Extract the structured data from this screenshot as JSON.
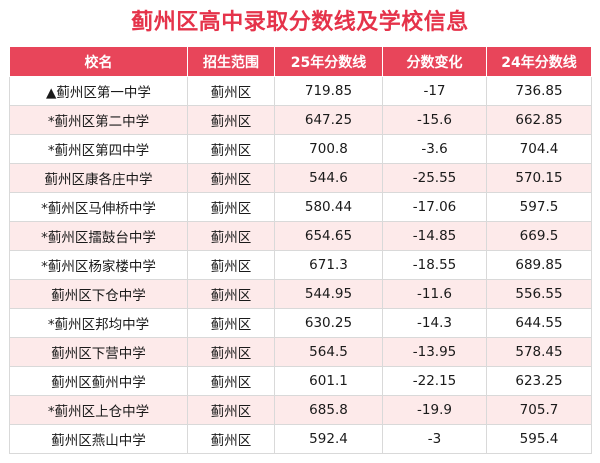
{
  "title": "蓟州区高中录取分数线及学校信息",
  "table": {
    "headers": [
      "校名",
      "招生范围",
      "25年分数线",
      "分数变化",
      "24年分数线"
    ],
    "rows": [
      [
        "▲蓟州区第一中学",
        "蓟州区",
        "719.85",
        "-17",
        "736.85"
      ],
      [
        "*蓟州区第二中学",
        "蓟州区",
        "647.25",
        "-15.6",
        "662.85"
      ],
      [
        "*蓟州区第四中学",
        "蓟州区",
        "700.8",
        "-3.6",
        "704.4"
      ],
      [
        "蓟州区康各庄中学",
        "蓟州区",
        "544.6",
        "-25.55",
        "570.15"
      ],
      [
        "*蓟州区马伸桥中学",
        "蓟州区",
        "580.44",
        "-17.06",
        "597.5"
      ],
      [
        "*蓟州区擂鼓台中学",
        "蓟州区",
        "654.65",
        "-14.85",
        "669.5"
      ],
      [
        "*蓟州区杨家楼中学",
        "蓟州区",
        "671.3",
        "-18.55",
        "689.85"
      ],
      [
        "蓟州区下仓中学",
        "蓟州区",
        "544.95",
        "-11.6",
        "556.55"
      ],
      [
        "*蓟州区邦均中学",
        "蓟州区",
        "630.25",
        "-14.3",
        "644.55"
      ],
      [
        "蓟州区下营中学",
        "蓟州区",
        "564.5",
        "-13.95",
        "578.45"
      ],
      [
        "蓟州区蓟州中学",
        "蓟州区",
        "601.1",
        "-22.15",
        "623.25"
      ],
      [
        "*蓟州区上仓中学",
        "蓟州区",
        "685.8",
        "-19.9",
        "705.7"
      ],
      [
        "蓟州区燕山中学",
        "蓟州区",
        "592.4",
        "-3",
        "595.4"
      ]
    ]
  },
  "colors": {
    "title": "#e5334a",
    "header_bg": "#e8455a",
    "row_alt_bg": "#fdeaea"
  }
}
